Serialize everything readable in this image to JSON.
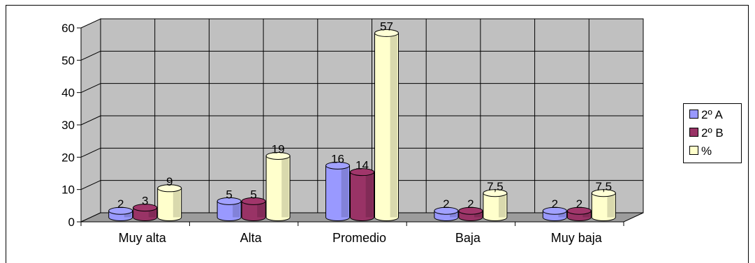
{
  "chart_data": {
    "type": "bar",
    "categories": [
      "Muy alta",
      "Alta",
      "Promedio",
      "Baja",
      "Muy baja"
    ],
    "series": [
      {
        "name": "2º A",
        "values": [
          2,
          5,
          16,
          2,
          2
        ],
        "labels": [
          "2",
          "5",
          "16",
          "2",
          "2"
        ],
        "color": "#9999ff"
      },
      {
        "name": "2º B",
        "values": [
          3,
          5,
          14,
          2,
          2
        ],
        "labels": [
          "3",
          "5",
          "14",
          "2",
          "2"
        ],
        "color": "#993366"
      },
      {
        "name": "%",
        "values": [
          9,
          19,
          57,
          7.5,
          7.5
        ],
        "labels": [
          "9",
          "19",
          "57",
          "7,5",
          "7,5"
        ],
        "color": "#ffffcc"
      }
    ],
    "y_ticks": [
      "0",
      "10",
      "20",
      "30",
      "40",
      "50",
      "60"
    ],
    "ylim": [
      0,
      60
    ],
    "grid": true,
    "legend_position": "right",
    "background_color": "#c0c0c0",
    "title": "",
    "xlabel": "",
    "ylabel": ""
  }
}
